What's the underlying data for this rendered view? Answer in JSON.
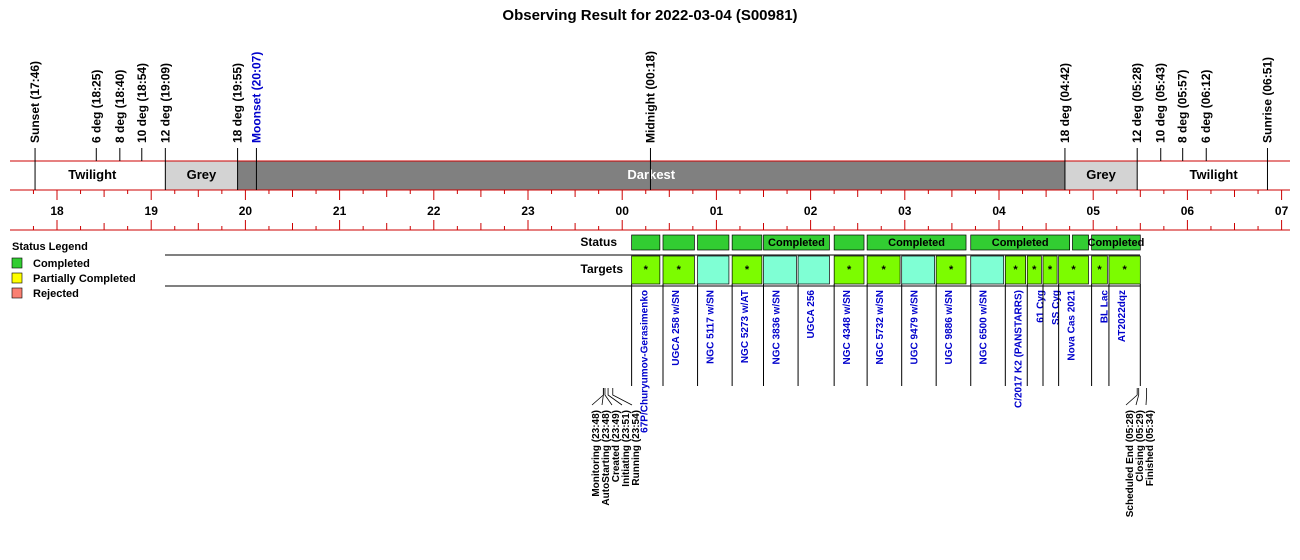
{
  "title": "Observing Result for 2022-03-04 (S00981)",
  "colors": {
    "red_line": "#cc0000",
    "twilight": "#ffffff",
    "grey": "#d3d3d3",
    "darkest": "#808080",
    "completed_green": "#7cfc00",
    "completed_status": "#32cd32",
    "cyan": "#7fffd4",
    "partial": "#ffff00",
    "rejected": "#fa8072",
    "moon_blue": "#0000cc"
  },
  "chart_data": {
    "type": "timeline",
    "x_unit": "hour (local time, continuous past midnight)",
    "xlim": [
      17.6,
      31.1
    ],
    "hour_ticks": [
      {
        "h": 18,
        "label": "18"
      },
      {
        "h": 19,
        "label": "19"
      },
      {
        "h": 20,
        "label": "20"
      },
      {
        "h": 21,
        "label": "21"
      },
      {
        "h": 22,
        "label": "22"
      },
      {
        "h": 23,
        "label": "23"
      },
      {
        "h": 24,
        "label": "00"
      },
      {
        "h": 25,
        "label": "01"
      },
      {
        "h": 26,
        "label": "02"
      },
      {
        "h": 27,
        "label": "03"
      },
      {
        "h": 28,
        "label": "04"
      },
      {
        "h": 29,
        "label": "05"
      },
      {
        "h": 30,
        "label": "06"
      },
      {
        "h": 31,
        "label": "07"
      }
    ],
    "sky_events": [
      {
        "t": 17.767,
        "label": "Sunset (17:46)",
        "color": "#000000"
      },
      {
        "t": 18.417,
        "label": "6 deg (18:25)",
        "color": "#000000"
      },
      {
        "t": 18.667,
        "label": "8 deg (18:40)",
        "color": "#000000"
      },
      {
        "t": 18.9,
        "label": "10 deg (18:54)",
        "color": "#000000"
      },
      {
        "t": 19.15,
        "label": "12 deg (19:09)",
        "color": "#000000"
      },
      {
        "t": 19.917,
        "label": "18 deg (19:55)",
        "color": "#000000"
      },
      {
        "t": 20.117,
        "label": "Moonset (20:07)",
        "color": "#0000cc"
      },
      {
        "t": 24.3,
        "label": "Midnight (00:18)",
        "color": "#000000"
      },
      {
        "t": 28.7,
        "label": "18 deg (04:42)",
        "color": "#000000"
      },
      {
        "t": 29.467,
        "label": "12 deg (05:28)",
        "color": "#000000"
      },
      {
        "t": 29.717,
        "label": "10 deg (05:43)",
        "color": "#000000"
      },
      {
        "t": 29.95,
        "label": "8 deg (05:57)",
        "color": "#000000"
      },
      {
        "t": 30.2,
        "label": "6 deg (06:12)",
        "color": "#000000"
      },
      {
        "t": 30.85,
        "label": "Sunrise (06:51)",
        "color": "#000000"
      }
    ],
    "bands": [
      {
        "start": 17.6,
        "end": 19.15,
        "label": "Twilight",
        "kind": "twilight"
      },
      {
        "start": 19.15,
        "end": 19.917,
        "label": "Grey",
        "kind": "grey"
      },
      {
        "start": 19.917,
        "end": 28.7,
        "label": "Darkest",
        "kind": "darkest"
      },
      {
        "start": 28.7,
        "end": 29.467,
        "label": "Grey",
        "kind": "grey"
      },
      {
        "start": 29.467,
        "end": 31.1,
        "label": "Twilight",
        "kind": "twilight"
      }
    ],
    "row_labels": {
      "status": "Status",
      "targets": "Targets"
    },
    "status_blocks": [
      {
        "start": 24.1,
        "end": 24.4,
        "label": ""
      },
      {
        "start": 24.433,
        "end": 24.767,
        "label": ""
      },
      {
        "start": 24.8,
        "end": 25.133,
        "label": ""
      },
      {
        "start": 25.167,
        "end": 25.483,
        "label": ""
      },
      {
        "start": 25.5,
        "end": 26.2,
        "label": "Completed"
      },
      {
        "start": 26.25,
        "end": 26.567,
        "label": ""
      },
      {
        "start": 26.6,
        "end": 27.65,
        "label": "Completed"
      },
      {
        "start": 27.7,
        "end": 28.75,
        "label": "Completed"
      },
      {
        "start": 28.78,
        "end": 28.95,
        "label": ""
      },
      {
        "start": 28.983,
        "end": 29.5,
        "label": "Completed"
      }
    ],
    "targets": [
      {
        "start": 24.1,
        "end": 24.4,
        "name": "67P/Churyumov-Gerasimenko",
        "kind": "green",
        "mark": "*"
      },
      {
        "start": 24.433,
        "end": 24.767,
        "name": "UGCA 258 w/SN",
        "kind": "green",
        "mark": "*"
      },
      {
        "start": 24.8,
        "end": 25.133,
        "name": "NGC 5117 w/SN",
        "kind": "cyan",
        "mark": ""
      },
      {
        "start": 25.167,
        "end": 25.483,
        "name": "NGC 5273 w/AT",
        "kind": "green",
        "mark": "*"
      },
      {
        "start": 25.5,
        "end": 25.85,
        "name": "NGC 3836 w/SN",
        "kind": "cyan",
        "mark": ""
      },
      {
        "start": 25.867,
        "end": 26.2,
        "name": "UGCA 256",
        "kind": "cyan",
        "mark": ""
      },
      {
        "start": 26.25,
        "end": 26.567,
        "name": "NGC 4348 w/SN",
        "kind": "green",
        "mark": "*"
      },
      {
        "start": 26.6,
        "end": 26.95,
        "name": "NGC 5732 w/SN",
        "kind": "green",
        "mark": "*"
      },
      {
        "start": 26.967,
        "end": 27.317,
        "name": "UGC 9479 w/SN",
        "kind": "cyan",
        "mark": ""
      },
      {
        "start": 27.333,
        "end": 27.65,
        "name": "UGC 9886 w/SN",
        "kind": "green",
        "mark": "*"
      },
      {
        "start": 27.7,
        "end": 28.05,
        "name": "NGC 6500 w/SN",
        "kind": "cyan",
        "mark": ""
      },
      {
        "start": 28.067,
        "end": 28.283,
        "name": "C/2017 K2 (PANSTARRS)",
        "kind": "green",
        "mark": "*"
      },
      {
        "start": 28.3,
        "end": 28.45,
        "name": "61 Cyg",
        "kind": "green",
        "mark": "*"
      },
      {
        "start": 28.467,
        "end": 28.617,
        "name": "SS Cyg",
        "kind": "green",
        "mark": "*"
      },
      {
        "start": 28.633,
        "end": 28.95,
        "name": "Nova Cas 2021",
        "kind": "green",
        "mark": "*"
      },
      {
        "start": 28.983,
        "end": 29.15,
        "name": "BL Lac",
        "kind": "green",
        "mark": "*"
      },
      {
        "start": 29.167,
        "end": 29.5,
        "name": "AT2022dqz",
        "kind": "green",
        "mark": "*"
      }
    ],
    "start_annotations": [
      {
        "t": 23.8,
        "label": "Monitoring (23:48)"
      },
      {
        "t": 23.8,
        "label": "AutoStarting (23:48)"
      },
      {
        "t": 23.817,
        "label": "Created (23:49)"
      },
      {
        "t": 23.85,
        "label": "Initiating (23:51)"
      },
      {
        "t": 23.9,
        "label": "Running (23:54)"
      }
    ],
    "end_annotations": [
      {
        "t": 29.467,
        "label": "Scheduled End (05:28)"
      },
      {
        "t": 29.483,
        "label": "Closing (05:29)"
      },
      {
        "t": 29.567,
        "label": "Finished (05:34)"
      }
    ]
  },
  "legend": {
    "title": "Status Legend",
    "items": [
      {
        "label": "Completed",
        "color": "#32cd32"
      },
      {
        "label": "Partially Completed",
        "color": "#ffff00"
      },
      {
        "label": "Rejected",
        "color": "#fa8072"
      }
    ]
  }
}
